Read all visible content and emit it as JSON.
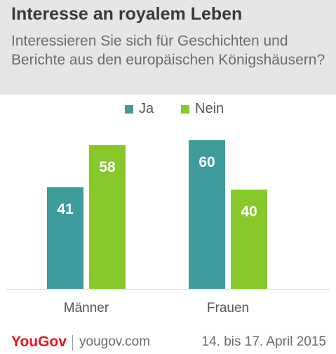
{
  "header": {
    "title": "Interesse an royalem Leben",
    "subtitle": "Interessieren Sie sich für Geschichten und Berichte aus den europäischen Königshäusern?"
  },
  "chart_data": {
    "type": "bar",
    "categories": [
      "Männer",
      "Frauen"
    ],
    "series": [
      {
        "name": "Ja",
        "values": [
          41,
          60
        ],
        "color": "#3f9c9c"
      },
      {
        "name": "Nein",
        "values": [
          58,
          40
        ],
        "color": "#87c92a"
      }
    ],
    "ylim": [
      0,
      60
    ],
    "grid": false,
    "legend_placement": "top-center",
    "value_label_color": "#ffffff",
    "axis_label_color": "#555555"
  },
  "footer": {
    "brand": "YouGov",
    "site": "yougov.com",
    "date": "14. bis 17. April 2015",
    "brand_color": "#e8141e"
  }
}
